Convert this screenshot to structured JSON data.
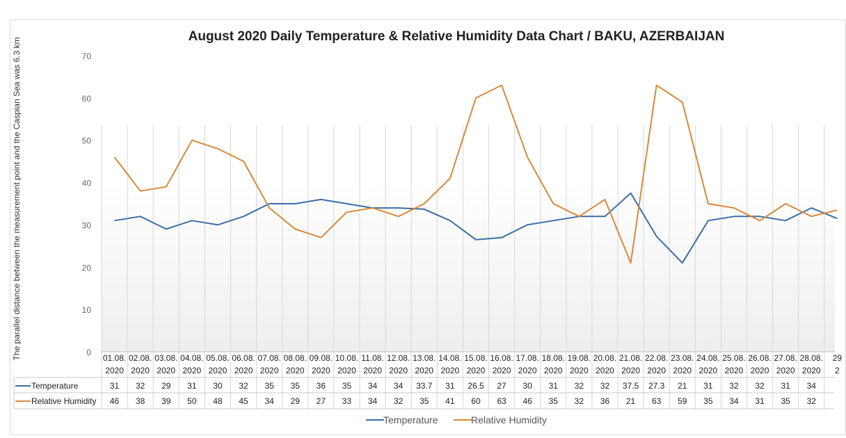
{
  "chart_data": {
    "type": "line",
    "title": "August 2020 Daily Temperature & Relative Humidity Data Chart / BAKU, AZERBAIJAN",
    "ylabel": "The parallel distance between the measurement point and the Caspian Sea was 6.3 km",
    "ylim": [
      0,
      70
    ],
    "yticks": [
      0,
      10,
      20,
      30,
      40,
      50,
      60,
      70
    ],
    "grid": true,
    "legend_position": "bottom",
    "categories": [
      [
        "01.08.",
        "2020"
      ],
      [
        "02.08.",
        "2020"
      ],
      [
        "03.08.",
        "2020"
      ],
      [
        "04.08.",
        "2020"
      ],
      [
        "05.08.",
        "2020"
      ],
      [
        "06.08.",
        "2020"
      ],
      [
        "07.08.",
        "2020"
      ],
      [
        "08.08.",
        "2020"
      ],
      [
        "09.08.",
        "2020"
      ],
      [
        "10.08.",
        "2020"
      ],
      [
        "11.08.",
        "2020"
      ],
      [
        "12.08.",
        "2020"
      ],
      [
        "13.08.",
        "2020"
      ],
      [
        "14.08.",
        "2020"
      ],
      [
        "15.08.",
        "2020"
      ],
      [
        "16.08.",
        "2020"
      ],
      [
        "17.08.",
        "2020"
      ],
      [
        "18.08.",
        "2020"
      ],
      [
        "19.08.",
        "2020"
      ],
      [
        "20.08.",
        "2020"
      ],
      [
        "21.08.",
        "2020"
      ],
      [
        "22.08.",
        "2020"
      ],
      [
        "23.08.",
        "2020"
      ],
      [
        "24.08.",
        "2020"
      ],
      [
        "25.08.",
        "2020"
      ],
      [
        "26.08.",
        "2020"
      ],
      [
        "27.08.",
        "2020"
      ],
      [
        "28.08.",
        "2020"
      ],
      [
        "29",
        "2"
      ]
    ],
    "series": [
      {
        "name": "Temperature",
        "color": "#3a6ea5",
        "values": [
          31,
          32,
          29,
          31,
          30,
          32,
          35,
          35,
          36,
          35,
          34,
          34,
          33.7,
          31,
          26.5,
          27,
          30,
          31,
          32,
          32,
          37.5,
          27.3,
          21,
          31,
          32,
          32,
          31,
          34,
          31.5
        ],
        "table_values": [
          "31",
          "32",
          "29",
          "31",
          "30",
          "32",
          "35",
          "35",
          "36",
          "35",
          "34",
          "34",
          "33.7",
          "31",
          "26.5",
          "27",
          "30",
          "31",
          "32",
          "32",
          "37.5",
          "27.3",
          "21",
          "31",
          "32",
          "32",
          "31",
          "34",
          ""
        ]
      },
      {
        "name": "Relative Humidity",
        "color": "#d9883b",
        "values": [
          46,
          38,
          39,
          50,
          48,
          45,
          34,
          29,
          27,
          33,
          34,
          32,
          35,
          41,
          60,
          63,
          46,
          35,
          32,
          36,
          21,
          63,
          59,
          35,
          34,
          31,
          35,
          32,
          33.5
        ],
        "table_values": [
          "46",
          "38",
          "39",
          "50",
          "48",
          "45",
          "34",
          "29",
          "27",
          "33",
          "34",
          "32",
          "35",
          "41",
          "60",
          "63",
          "46",
          "35",
          "32",
          "36",
          "21",
          "63",
          "59",
          "35",
          "34",
          "31",
          "35",
          "32",
          ""
        ]
      }
    ]
  }
}
